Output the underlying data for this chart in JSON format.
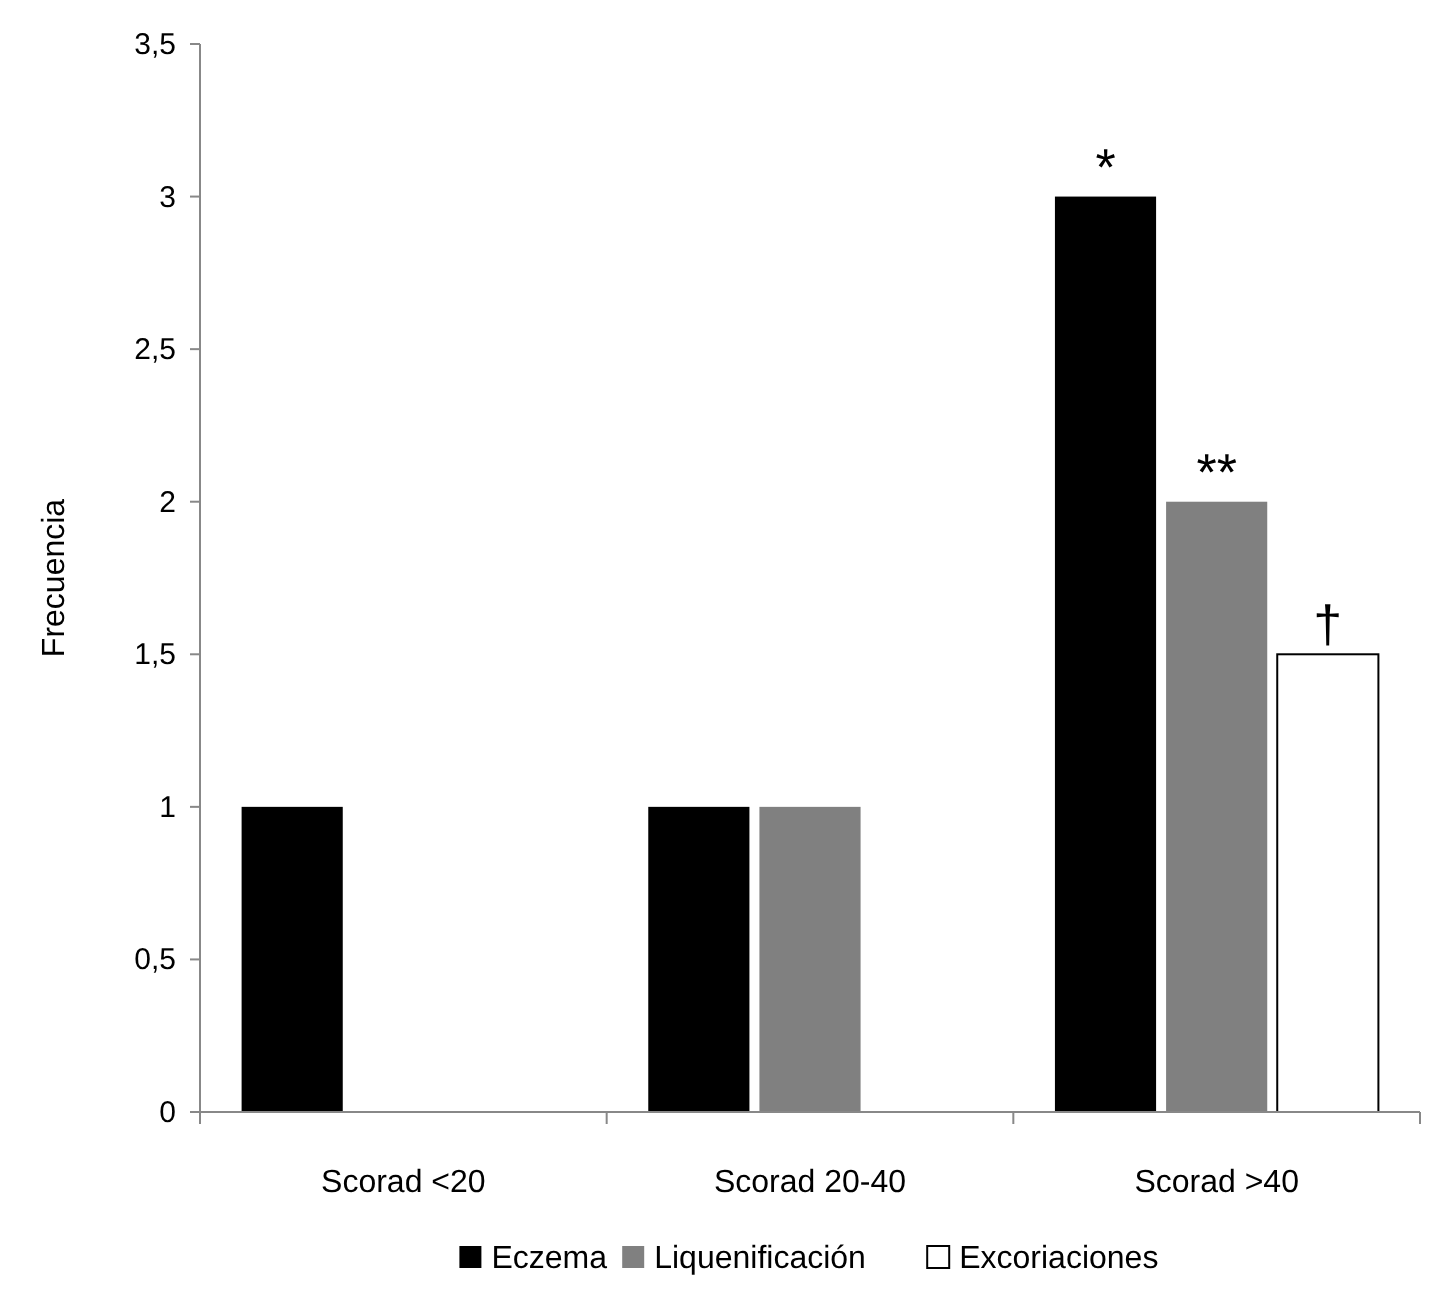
{
  "chart_data": {
    "type": "bar",
    "ylabel": "Frecuencia",
    "categories": [
      "Scorad <20",
      "Scorad 20-40",
      "Scorad >40"
    ],
    "series": [
      {
        "name": "Eczema",
        "color": "#000000",
        "values": [
          1,
          1,
          3
        ]
      },
      {
        "name": "Liquenificación",
        "color": "#808080",
        "values": [
          0,
          1,
          2
        ]
      },
      {
        "name": "Excoriaciones",
        "color": "#ffffff",
        "values": [
          0,
          0,
          1.5
        ]
      }
    ],
    "ylim": [
      0,
      3.5
    ],
    "yticks": [
      0,
      {
        "value": 0.5,
        "label": "0,5"
      },
      1,
      {
        "value": 1.5,
        "label": "1,5"
      },
      2,
      {
        "value": 2.5,
        "label": "2,5"
      },
      3,
      {
        "value": 3.5,
        "label": "3,5"
      }
    ],
    "grid": false,
    "legend": "bottom",
    "annotations": [
      "*",
      "**",
      "†"
    ]
  }
}
